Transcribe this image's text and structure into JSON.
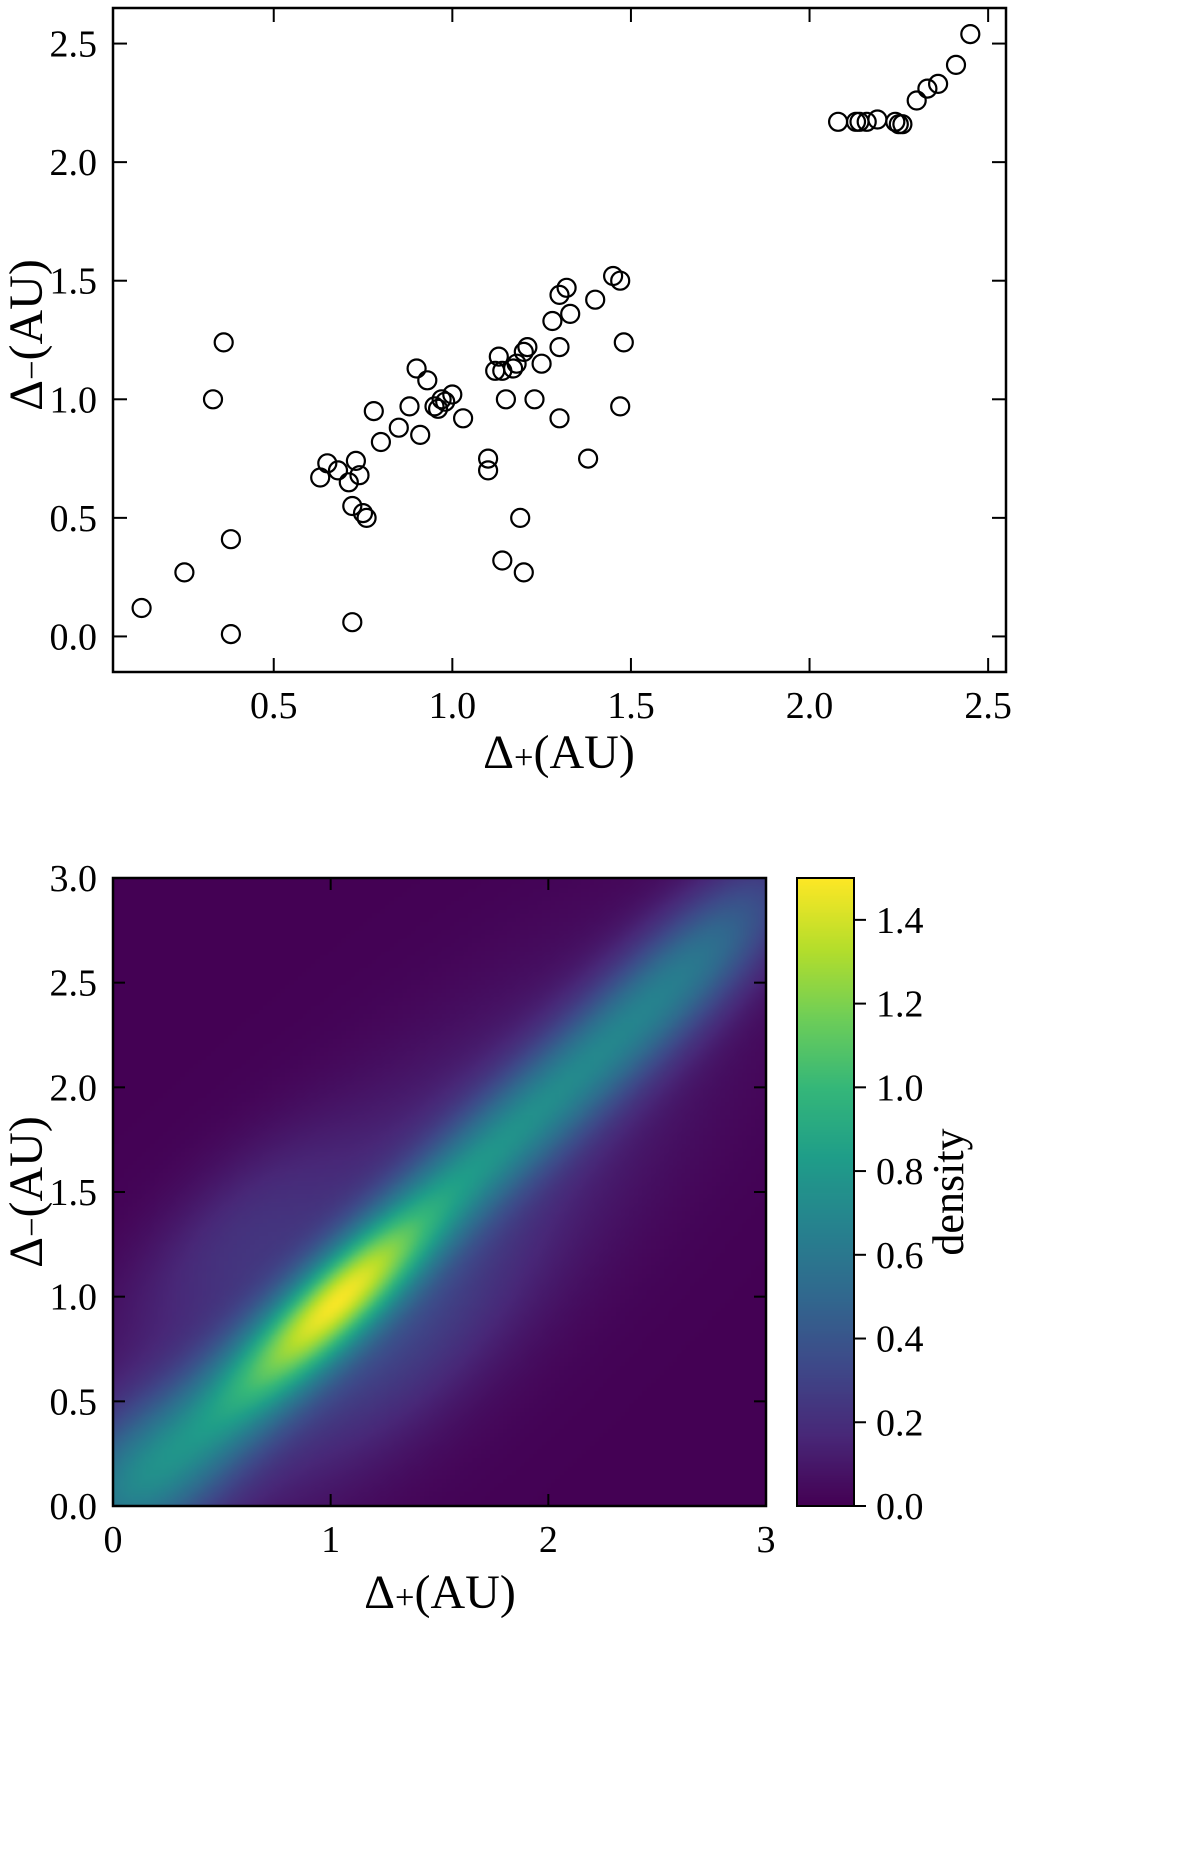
{
  "figures": {
    "scatter": {
      "xlabel": {
        "delta": "Δ",
        "sub": "+",
        "unit": " (AU)"
      },
      "ylabel": {
        "delta": "Δ",
        "sub": "−",
        "unit": " (AU)"
      }
    },
    "heatmap": {
      "xlabel": {
        "delta": "Δ",
        "sub": "+",
        "unit": " (AU)"
      },
      "ylabel": {
        "delta": "Δ",
        "sub": "−",
        "unit": " (AU)"
      },
      "colorbar_label": "density"
    }
  },
  "chart_data": [
    {
      "type": "scatter",
      "title": "",
      "xlabel": "Δ₊ (AU)",
      "ylabel": "Δ₋ (AU)",
      "marker": "open-circle",
      "marker_color": "#000000",
      "xlim": [
        0.05,
        2.55
      ],
      "ylim": [
        -0.15,
        2.65
      ],
      "xticks": [
        0.5,
        1.0,
        1.5,
        2.0,
        2.5
      ],
      "xtick_labels": [
        "0.5",
        "1.0",
        "1.5",
        "2.0",
        "2.5"
      ],
      "yticks": [
        0.0,
        0.5,
        1.0,
        1.5,
        2.0,
        2.5
      ],
      "ytick_labels": [
        "0.0",
        "0.5",
        "1.0",
        "1.5",
        "2.0",
        "2.5"
      ],
      "grid": false,
      "points": [
        [
          0.13,
          0.12
        ],
        [
          0.25,
          0.27
        ],
        [
          0.33,
          1.0
        ],
        [
          0.36,
          1.24
        ],
        [
          0.38,
          0.41
        ],
        [
          0.38,
          0.01
        ],
        [
          0.63,
          0.67
        ],
        [
          0.65,
          0.73
        ],
        [
          0.68,
          0.7
        ],
        [
          0.71,
          0.65
        ],
        [
          0.72,
          0.55
        ],
        [
          0.72,
          0.06
        ],
        [
          0.73,
          0.74
        ],
        [
          0.74,
          0.68
        ],
        [
          0.75,
          0.52
        ],
        [
          0.76,
          0.5
        ],
        [
          0.78,
          0.95
        ],
        [
          0.8,
          0.82
        ],
        [
          0.85,
          0.88
        ],
        [
          0.88,
          0.97
        ],
        [
          0.9,
          1.13
        ],
        [
          0.91,
          0.85
        ],
        [
          0.93,
          1.08
        ],
        [
          0.95,
          0.97
        ],
        [
          0.96,
          0.96
        ],
        [
          0.97,
          1.0
        ],
        [
          0.98,
          0.99
        ],
        [
          1.0,
          1.02
        ],
        [
          1.03,
          0.92
        ],
        [
          1.1,
          0.7
        ],
        [
          1.1,
          0.75
        ],
        [
          1.12,
          1.12
        ],
        [
          1.13,
          1.18
        ],
        [
          1.14,
          1.12
        ],
        [
          1.14,
          0.32
        ],
        [
          1.15,
          1.0
        ],
        [
          1.17,
          1.13
        ],
        [
          1.18,
          1.15
        ],
        [
          1.19,
          0.5
        ],
        [
          1.2,
          0.27
        ],
        [
          1.2,
          1.2
        ],
        [
          1.21,
          1.22
        ],
        [
          1.23,
          1.0
        ],
        [
          1.25,
          1.15
        ],
        [
          1.28,
          1.33
        ],
        [
          1.3,
          0.92
        ],
        [
          1.3,
          1.22
        ],
        [
          1.3,
          1.44
        ],
        [
          1.32,
          1.47
        ],
        [
          1.33,
          1.36
        ],
        [
          1.38,
          0.75
        ],
        [
          1.4,
          1.42
        ],
        [
          1.45,
          1.52
        ],
        [
          1.47,
          1.5
        ],
        [
          1.47,
          0.97
        ],
        [
          1.48,
          1.24
        ],
        [
          2.08,
          2.17
        ],
        [
          2.13,
          2.17
        ],
        [
          2.14,
          2.17
        ],
        [
          2.16,
          2.17
        ],
        [
          2.19,
          2.18
        ],
        [
          2.24,
          2.17
        ],
        [
          2.25,
          2.16
        ],
        [
          2.26,
          2.16
        ],
        [
          2.3,
          2.26
        ],
        [
          2.33,
          2.31
        ],
        [
          2.36,
          2.33
        ],
        [
          2.41,
          2.41
        ],
        [
          2.45,
          2.54
        ]
      ]
    },
    {
      "type": "heatmap",
      "title": "",
      "xlabel": "Δ₊ (AU)",
      "ylabel": "Δ₋ (AU)",
      "xlim": [
        0,
        3
      ],
      "ylim": [
        0,
        3
      ],
      "xticks": [
        0,
        1,
        2,
        3
      ],
      "xtick_labels": [
        "0",
        "1",
        "2",
        "3"
      ],
      "yticks": [
        0.0,
        0.5,
        1.0,
        1.5,
        2.0,
        2.5,
        3.0
      ],
      "ytick_labels": [
        "0.0",
        "0.5",
        "1.0",
        "1.5",
        "2.0",
        "2.5",
        "3.0"
      ],
      "colormap": "viridis",
      "colormap_stops": [
        [
          68,
          1,
          84
        ],
        [
          72,
          40,
          120
        ],
        [
          62,
          73,
          137
        ],
        [
          49,
          104,
          142
        ],
        [
          38,
          130,
          142
        ],
        [
          31,
          158,
          137
        ],
        [
          53,
          183,
          121
        ],
        [
          110,
          206,
          88
        ],
        [
          181,
          222,
          43
        ],
        [
          253,
          231,
          37
        ]
      ],
      "colorbar": {
        "label": "density",
        "vmin": 0.0,
        "vmax": 1.5,
        "ticks": [
          0.0,
          0.2,
          0.4,
          0.6,
          0.8,
          1.0,
          1.2,
          1.4
        ],
        "tick_labels": [
          "0.0",
          "0.2",
          "0.4",
          "0.6",
          "0.8",
          "1.0",
          "1.2",
          "1.4"
        ]
      },
      "grid_resolution": 150,
      "density_components": [
        {
          "cx": 1.05,
          "cy": 1.0,
          "s_par": 0.42,
          "s_perp": 0.13,
          "amp": 1.12
        },
        {
          "cx": 0.55,
          "cy": 0.5,
          "s_par": 0.38,
          "s_perp": 0.17,
          "amp": 0.4
        },
        {
          "cx": 0.08,
          "cy": 0.1,
          "s_par": 0.32,
          "s_perp": 0.22,
          "amp": 0.48
        },
        {
          "cx": 1.72,
          "cy": 1.68,
          "s_par": 0.42,
          "s_perp": 0.15,
          "amp": 0.38
        },
        {
          "cx": 2.32,
          "cy": 2.24,
          "s_par": 0.5,
          "s_perp": 0.16,
          "amp": 0.45
        },
        {
          "cx": 2.78,
          "cy": 2.72,
          "s_par": 0.4,
          "s_perp": 0.17,
          "amp": 0.28
        },
        {
          "cx": 1.25,
          "cy": 1.15,
          "s_par": 1.25,
          "s_perp": 0.42,
          "amp": 0.24
        },
        {
          "cx": 0.55,
          "cy": 1.3,
          "s_par": 0.45,
          "s_perp": 0.2,
          "amp": 0.13
        },
        {
          "cx": 1.35,
          "cy": 0.75,
          "s_par": 0.5,
          "s_perp": 0.22,
          "amp": 0.12
        }
      ]
    }
  ]
}
